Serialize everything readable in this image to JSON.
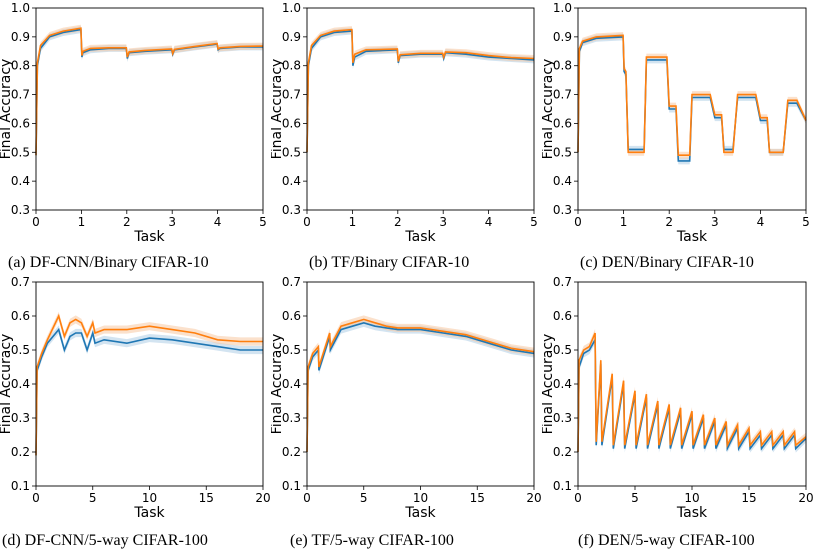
{
  "colors": {
    "series_a": "#1f77b4",
    "series_b": "#ff7f0e",
    "band_a": "#aecde6",
    "band_b": "#f7c9a3"
  },
  "chart_data": [
    {
      "type": "line",
      "caption": "(a) DF-CNN/Binary CIFAR-10",
      "xlabel": "Task",
      "ylabel": "Final Accuracy",
      "xlim": [
        0,
        5
      ],
      "ylim": [
        0.3,
        1.0
      ],
      "xticks": [
        "0",
        "1",
        "2",
        "3",
        "4",
        "5"
      ],
      "yticks": [
        "0.3",
        "0.4",
        "0.5",
        "0.6",
        "0.7",
        "0.8",
        "0.9",
        "1.0"
      ],
      "series": [
        {
          "color": "blue",
          "x": [
            0,
            0.03,
            0.1,
            0.3,
            0.6,
            0.99,
            1.01,
            1.03,
            1.2,
            1.6,
            1.99,
            2.01,
            2.05,
            2.4,
            2.99,
            3.01,
            3.05,
            3.5,
            3.99,
            4.01,
            4.05,
            4.5,
            5.0
          ],
          "y": [
            0.49,
            0.8,
            0.86,
            0.9,
            0.915,
            0.925,
            0.83,
            0.845,
            0.855,
            0.86,
            0.86,
            0.825,
            0.845,
            0.85,
            0.855,
            0.84,
            0.855,
            0.865,
            0.875,
            0.855,
            0.86,
            0.865,
            0.865
          ]
        },
        {
          "color": "orange",
          "x": [
            0,
            0.03,
            0.1,
            0.3,
            0.6,
            0.99,
            1.01,
            1.03,
            1.2,
            1.6,
            1.99,
            2.01,
            2.05,
            2.4,
            2.99,
            3.01,
            3.05,
            3.5,
            3.99,
            4.01,
            4.05,
            4.5,
            5.0
          ],
          "y": [
            0.49,
            0.81,
            0.87,
            0.905,
            0.92,
            0.93,
            0.835,
            0.85,
            0.86,
            0.862,
            0.862,
            0.83,
            0.848,
            0.853,
            0.858,
            0.842,
            0.857,
            0.867,
            0.877,
            0.858,
            0.862,
            0.867,
            0.868
          ]
        }
      ]
    },
    {
      "type": "line",
      "caption": "(b) TF/Binary CIFAR-10",
      "xlabel": "Task",
      "ylabel": "Final Accuracy",
      "xlim": [
        0,
        5
      ],
      "ylim": [
        0.3,
        1.0
      ],
      "xticks": [
        "0",
        "1",
        "2",
        "3",
        "4",
        "5"
      ],
      "yticks": [
        "0.3",
        "0.4",
        "0.5",
        "0.6",
        "0.7",
        "0.8",
        "0.9",
        "1.0"
      ],
      "series": [
        {
          "color": "blue",
          "x": [
            0,
            0.03,
            0.1,
            0.3,
            0.6,
            0.99,
            1.01,
            1.05,
            1.3,
            1.99,
            2.01,
            2.05,
            2.5,
            2.99,
            3.01,
            3.05,
            3.5,
            4.0,
            4.5,
            5.0
          ],
          "y": [
            0.5,
            0.8,
            0.86,
            0.9,
            0.915,
            0.92,
            0.8,
            0.83,
            0.85,
            0.855,
            0.81,
            0.835,
            0.84,
            0.84,
            0.825,
            0.845,
            0.84,
            0.83,
            0.825,
            0.82
          ]
        },
        {
          "color": "orange",
          "x": [
            0,
            0.03,
            0.1,
            0.3,
            0.6,
            0.99,
            1.01,
            1.05,
            1.3,
            1.99,
            2.01,
            2.05,
            2.5,
            2.99,
            3.01,
            3.05,
            3.5,
            4.0,
            4.5,
            5.0
          ],
          "y": [
            0.5,
            0.81,
            0.87,
            0.905,
            0.92,
            0.925,
            0.81,
            0.84,
            0.855,
            0.858,
            0.815,
            0.838,
            0.843,
            0.843,
            0.83,
            0.848,
            0.845,
            0.835,
            0.828,
            0.825
          ]
        }
      ]
    },
    {
      "type": "line",
      "caption": "(c) DEN/Binary CIFAR-10",
      "xlabel": "Task",
      "ylabel": "Final Accuracy",
      "xlim": [
        0,
        5
      ],
      "ylim": [
        0.3,
        1.0
      ],
      "xticks": [
        "0",
        "1",
        "2",
        "3",
        "4",
        "5"
      ],
      "yticks": [
        "0.3",
        "0.4",
        "0.5",
        "0.6",
        "0.7",
        "0.8",
        "0.9",
        "1.0"
      ],
      "series": [
        {
          "color": "blue",
          "x": [
            0,
            0.03,
            0.1,
            0.4,
            0.99,
            1.01,
            1.05,
            1.1,
            1.45,
            1.5,
            1.95,
            2.0,
            2.15,
            2.2,
            2.45,
            2.5,
            2.9,
            3.0,
            3.15,
            3.2,
            3.4,
            3.5,
            3.9,
            4.0,
            4.15,
            4.2,
            4.5,
            4.6,
            4.8,
            5.0
          ],
          "y": [
            0.5,
            0.85,
            0.88,
            0.895,
            0.9,
            0.78,
            0.77,
            0.51,
            0.51,
            0.82,
            0.82,
            0.65,
            0.65,
            0.47,
            0.47,
            0.69,
            0.69,
            0.62,
            0.62,
            0.51,
            0.51,
            0.69,
            0.69,
            0.61,
            0.61,
            0.5,
            0.5,
            0.67,
            0.67,
            0.61
          ]
        },
        {
          "color": "orange",
          "x": [
            0,
            0.03,
            0.1,
            0.4,
            0.99,
            1.01,
            1.05,
            1.1,
            1.45,
            1.5,
            1.95,
            2.0,
            2.15,
            2.2,
            2.45,
            2.5,
            2.9,
            3.0,
            3.15,
            3.2,
            3.4,
            3.5,
            3.9,
            4.0,
            4.15,
            4.2,
            4.5,
            4.6,
            4.8,
            5.0
          ],
          "y": [
            0.5,
            0.86,
            0.885,
            0.9,
            0.905,
            0.79,
            0.78,
            0.5,
            0.5,
            0.83,
            0.83,
            0.66,
            0.66,
            0.49,
            0.49,
            0.7,
            0.7,
            0.63,
            0.63,
            0.5,
            0.5,
            0.7,
            0.7,
            0.62,
            0.62,
            0.5,
            0.5,
            0.68,
            0.68,
            0.61
          ]
        }
      ]
    },
    {
      "type": "line",
      "caption": "(d) DF-CNN/5-way CIFAR-100",
      "xlabel": "Task",
      "ylabel": "Final Accuracy",
      "xlim": [
        0,
        20
      ],
      "ylim": [
        0.1,
        0.7
      ],
      "xticks": [
        "0",
        "5",
        "10",
        "15",
        "20"
      ],
      "yticks": [
        "0.1",
        "0.2",
        "0.3",
        "0.4",
        "0.5",
        "0.6",
        "0.7"
      ],
      "series": [
        {
          "color": "blue",
          "x": [
            0,
            0.1,
            0.5,
            1,
            2,
            2.5,
            3,
            3.5,
            4,
            4.5,
            5,
            5.2,
            6,
            8,
            10,
            12,
            14,
            16,
            18,
            20
          ],
          "y": [
            0.19,
            0.44,
            0.48,
            0.52,
            0.56,
            0.5,
            0.54,
            0.55,
            0.55,
            0.5,
            0.55,
            0.52,
            0.53,
            0.52,
            0.535,
            0.53,
            0.52,
            0.51,
            0.5,
            0.5
          ]
        },
        {
          "color": "orange",
          "x": [
            0,
            0.1,
            0.5,
            1,
            2,
            2.5,
            3,
            3.5,
            4,
            4.5,
            5,
            5.2,
            6,
            8,
            10,
            12,
            14,
            16,
            18,
            20
          ],
          "y": [
            0.19,
            0.45,
            0.49,
            0.53,
            0.6,
            0.54,
            0.58,
            0.59,
            0.58,
            0.54,
            0.58,
            0.55,
            0.56,
            0.56,
            0.57,
            0.56,
            0.55,
            0.53,
            0.525,
            0.525
          ]
        }
      ]
    },
    {
      "type": "line",
      "caption": "(e) TF/5-way CIFAR-100",
      "xlabel": "Task",
      "ylabel": "Final Accuracy",
      "xlim": [
        0,
        20
      ],
      "ylim": [
        0.1,
        0.7
      ],
      "xticks": [
        "0",
        "5",
        "10",
        "15",
        "20"
      ],
      "yticks": [
        "0.1",
        "0.2",
        "0.3",
        "0.4",
        "0.5",
        "0.6",
        "0.7"
      ],
      "series": [
        {
          "color": "blue",
          "x": [
            0,
            0.1,
            0.5,
            1,
            1.05,
            2,
            2.05,
            3,
            4,
            5,
            6,
            7,
            8,
            10,
            12,
            14,
            16,
            18,
            20
          ],
          "y": [
            0.2,
            0.44,
            0.48,
            0.5,
            0.44,
            0.54,
            0.5,
            0.56,
            0.57,
            0.58,
            0.57,
            0.565,
            0.56,
            0.56,
            0.55,
            0.54,
            0.52,
            0.5,
            0.49
          ]
        },
        {
          "color": "orange",
          "x": [
            0,
            0.1,
            0.5,
            1,
            1.05,
            2,
            2.05,
            3,
            4,
            5,
            6,
            7,
            8,
            10,
            12,
            14,
            16,
            18,
            20
          ],
          "y": [
            0.2,
            0.45,
            0.49,
            0.51,
            0.45,
            0.55,
            0.51,
            0.57,
            0.58,
            0.59,
            0.58,
            0.57,
            0.565,
            0.565,
            0.555,
            0.545,
            0.525,
            0.505,
            0.495
          ]
        }
      ]
    },
    {
      "type": "line",
      "caption": "(f) DEN/5-way CIFAR-100",
      "xlabel": "Task",
      "ylabel": "Final Accuracy",
      "xlim": [
        0,
        20
      ],
      "ylim": [
        0.1,
        0.7
      ],
      "xticks": [
        "0",
        "5",
        "10",
        "15",
        "20"
      ],
      "yticks": [
        "0.1",
        "0.2",
        "0.3",
        "0.4",
        "0.5",
        "0.6",
        "0.7"
      ],
      "series": [
        {
          "color": "blue",
          "x": [
            0,
            0.1,
            0.5,
            1,
            1.5,
            1.6,
            2,
            2.1,
            3,
            3.1,
            4,
            4.1,
            5,
            5.1,
            6,
            6.1,
            7,
            7.1,
            8,
            8.1,
            9,
            9.1,
            10,
            10.1,
            11,
            11.1,
            12,
            12.1,
            13,
            13.1,
            14,
            14.1,
            15,
            15.1,
            16,
            16.1,
            17,
            17.1,
            18,
            18.1,
            19,
            19.1,
            20
          ],
          "y": [
            0.2,
            0.45,
            0.49,
            0.5,
            0.53,
            0.22,
            0.46,
            0.22,
            0.42,
            0.21,
            0.4,
            0.21,
            0.37,
            0.21,
            0.36,
            0.21,
            0.34,
            0.21,
            0.33,
            0.21,
            0.32,
            0.21,
            0.31,
            0.21,
            0.3,
            0.21,
            0.29,
            0.21,
            0.28,
            0.21,
            0.27,
            0.21,
            0.26,
            0.21,
            0.25,
            0.21,
            0.25,
            0.21,
            0.25,
            0.21,
            0.25,
            0.21,
            0.24
          ]
        },
        {
          "color": "orange",
          "x": [
            0,
            0.1,
            0.5,
            1,
            1.5,
            1.6,
            2,
            2.1,
            3,
            3.1,
            4,
            4.1,
            5,
            5.1,
            6,
            6.1,
            7,
            7.1,
            8,
            8.1,
            9,
            9.1,
            10,
            10.1,
            11,
            11.1,
            12,
            12.1,
            13,
            13.1,
            14,
            14.1,
            15,
            15.1,
            16,
            16.1,
            17,
            17.1,
            18,
            18.1,
            19,
            19.1,
            20
          ],
          "y": [
            0.2,
            0.47,
            0.5,
            0.51,
            0.55,
            0.23,
            0.47,
            0.23,
            0.43,
            0.22,
            0.41,
            0.22,
            0.38,
            0.22,
            0.37,
            0.22,
            0.35,
            0.22,
            0.34,
            0.22,
            0.33,
            0.22,
            0.32,
            0.22,
            0.31,
            0.22,
            0.3,
            0.22,
            0.29,
            0.22,
            0.28,
            0.22,
            0.27,
            0.22,
            0.26,
            0.22,
            0.26,
            0.22,
            0.26,
            0.22,
            0.26,
            0.22,
            0.245
          ]
        }
      ]
    }
  ]
}
